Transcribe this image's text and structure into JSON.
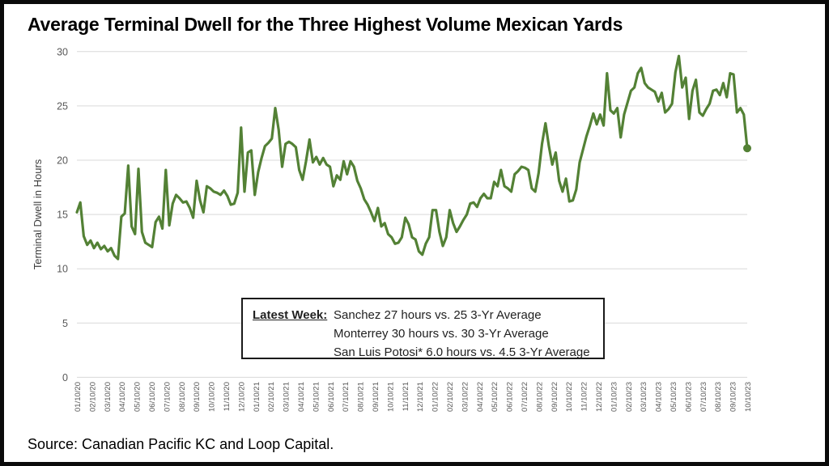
{
  "page": {
    "title": "Average Terminal Dwell for the Three Highest Volume Mexican Yards",
    "source": "Source: Canadian Pacific KC and Loop Capital."
  },
  "colors": {
    "line": "#538135",
    "gridline": "#d9d9d9",
    "tick_text": "#595959",
    "axis_title_text": "#3f3f3f",
    "border": "#0a0a0a"
  },
  "chart_data": {
    "type": "line",
    "title": "Average Terminal Dwell for the Three Highest Volume Mexican Yards",
    "xlabel": "",
    "ylabel": "Terminal Dwell in Hours",
    "ylim": [
      0,
      30
    ],
    "yticks": [
      0,
      5,
      10,
      15,
      20,
      25,
      30
    ],
    "grid": "horizontal",
    "legend_position": "none",
    "x_tick_labels": [
      "01/10/20",
      "02/10/20",
      "03/10/20",
      "04/10/20",
      "05/10/20",
      "06/10/20",
      "07/10/20",
      "08/10/20",
      "09/10/20",
      "10/10/20",
      "11/10/20",
      "12/10/20",
      "01/10/21",
      "02/10/21",
      "03/10/21",
      "04/10/21",
      "05/10/21",
      "06/10/21",
      "07/10/21",
      "08/10/21",
      "09/10/21",
      "10/10/21",
      "11/10/21",
      "12/10/21",
      "01/10/22",
      "02/10/22",
      "03/10/22",
      "04/10/22",
      "05/10/22",
      "06/10/22",
      "07/10/22",
      "08/10/22",
      "09/10/22",
      "10/10/22",
      "11/10/22",
      "12/10/22",
      "01/10/23",
      "02/10/23",
      "03/10/23",
      "04/10/23",
      "05/10/23",
      "06/10/23",
      "07/10/23",
      "08/10/23",
      "09/10/23",
      "10/10/23"
    ],
    "series": [
      {
        "name": "Average weekly terminal dwell (hours)",
        "color": "#538135",
        "end_marker": true,
        "values": [
          15.2,
          16.1,
          13.0,
          12.2,
          12.6,
          11.9,
          12.4,
          11.8,
          12.1,
          11.6,
          11.9,
          11.2,
          10.9,
          14.8,
          15.1,
          19.5,
          13.9,
          13.2,
          19.2,
          13.4,
          12.4,
          12.2,
          12.0,
          14.3,
          14.8,
          13.7,
          19.1,
          14.0,
          16.0,
          16.8,
          16.5,
          16.1,
          16.2,
          15.6,
          14.7,
          18.1,
          16.3,
          15.2,
          17.6,
          17.4,
          17.1,
          17.0,
          16.8,
          17.2,
          16.7,
          15.9,
          16.0,
          17.0,
          23.0,
          17.1,
          20.7,
          20.9,
          16.8,
          18.9,
          20.2,
          21.3,
          21.6,
          22.0,
          24.8,
          22.8,
          19.4,
          21.5,
          21.7,
          21.5,
          21.2,
          19.1,
          18.2,
          19.9,
          21.9,
          19.8,
          20.3,
          19.6,
          20.2,
          19.6,
          19.4,
          17.6,
          18.6,
          18.2,
          19.9,
          18.7,
          19.9,
          19.4,
          18.1,
          17.4,
          16.4,
          15.9,
          15.2,
          14.4,
          15.6,
          13.9,
          14.2,
          13.2,
          12.9,
          12.3,
          12.4,
          12.9,
          14.7,
          14.1,
          12.9,
          12.7,
          11.6,
          11.3,
          12.3,
          12.9,
          15.4,
          15.4,
          13.4,
          12.1,
          12.9,
          15.4,
          14.2,
          13.4,
          13.9,
          14.5,
          15.0,
          16.0,
          16.1,
          15.7,
          16.5,
          16.9,
          16.5,
          16.5,
          18.0,
          17.6,
          19.1,
          17.6,
          17.4,
          17.1,
          18.7,
          19.0,
          19.4,
          19.3,
          19.1,
          17.4,
          17.1,
          18.8,
          21.5,
          23.4,
          21.3,
          19.6,
          20.7,
          18.1,
          17.1,
          18.3,
          16.2,
          16.3,
          17.3,
          19.8,
          21.0,
          22.2,
          23.2,
          24.3,
          23.3,
          24.2,
          23.2,
          28.0,
          24.6,
          24.3,
          24.8,
          22.1,
          24.2,
          25.3,
          26.4,
          26.7,
          28.0,
          28.5,
          27.1,
          26.7,
          26.5,
          26.3,
          25.4,
          26.2,
          24.4,
          24.7,
          25.2,
          28.1,
          29.6,
          26.7,
          27.6,
          23.8,
          26.4,
          27.4,
          24.4,
          24.1,
          24.7,
          25.2,
          26.4,
          26.5,
          26.0,
          27.1,
          25.8,
          28.0,
          27.9,
          24.4,
          24.8,
          24.2,
          21.1
        ]
      }
    ],
    "latest_value": 21.1,
    "annotation": {
      "label": "Latest Week:",
      "lines": [
        "Sanchez 27 hours vs. 25 3-Yr Average",
        "Monterrey  30 hours vs. 30 3-Yr Average",
        "San Luis Potosi* 6.0 hours vs. 4.5 3-Yr Average"
      ]
    }
  }
}
